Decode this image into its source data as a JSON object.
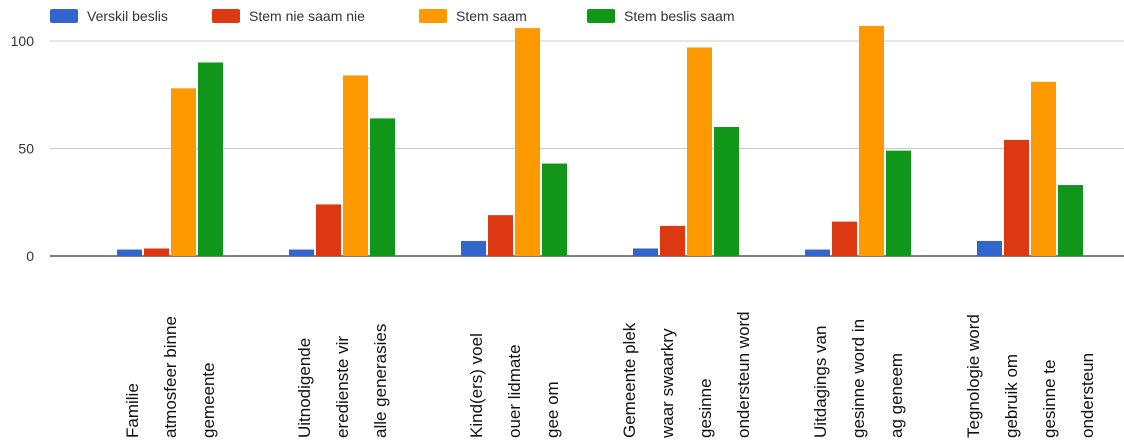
{
  "chart_data": {
    "type": "bar",
    "categories": [
      [
        "Familie",
        "atmosfeer binne",
        "gemeente"
      ],
      [
        "Uitnodigende",
        "eredienste vir",
        "alle generasies"
      ],
      [
        "Kind(ers) voel",
        "ouer lidmate",
        "gee om"
      ],
      [
        "Gemeente plek",
        "waar swaarkry",
        "gesinne",
        "ondersteun word"
      ],
      [
        "Uitdagings van",
        "gesinne word in",
        "ag geneem"
      ],
      [
        "Tegnologie word",
        "gebruik om",
        "gesinne te",
        "ondersteun"
      ]
    ],
    "series": [
      {
        "name": "Verskil beslis",
        "color": "#3366cc",
        "values": [
          3,
          3,
          7,
          3.5,
          3,
          7
        ]
      },
      {
        "name": "Stem nie saam nie",
        "color": "#dc3912",
        "values": [
          3.5,
          24,
          19,
          14,
          16,
          54
        ]
      },
      {
        "name": "Stem saam",
        "color": "#ff9900",
        "values": [
          78,
          84,
          106,
          97,
          107,
          81
        ]
      },
      {
        "name": "Stem beslis saam",
        "color": "#109618",
        "values": [
          90,
          64,
          43,
          60,
          49,
          33
        ]
      }
    ],
    "yticks": [
      0,
      50,
      100
    ],
    "ylim": [
      0,
      108
    ],
    "grid": true,
    "legend_position": "top-left",
    "title": "",
    "xlabel": "",
    "ylabel": ""
  }
}
